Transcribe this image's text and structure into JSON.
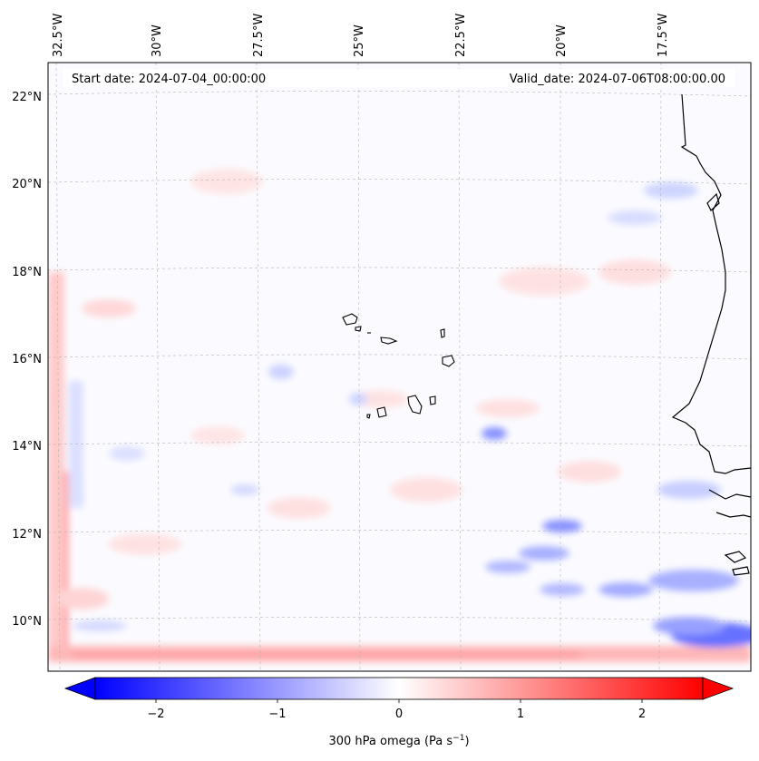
{
  "header": {
    "start_date": "Start date: 2024-07-04_00:00:00",
    "valid_date": "Valid_date: 2024-07-06T08:00:00.00"
  },
  "longitude_labels": [
    "32.5°W",
    "30°W",
    "27.5°W",
    "25°W",
    "22.5°W",
    "20°W",
    "17.5°W"
  ],
  "latitude_labels": [
    "22°N",
    "20°N",
    "18°N",
    "16°N",
    "14°N",
    "12°N",
    "10°N"
  ],
  "colorbar": {
    "ticks": [
      "−2",
      "−1",
      "0",
      "1",
      "2"
    ],
    "label_main": "300 hPa omega (Pa s",
    "label_sup": "−1",
    "label_end": ")",
    "min": -2.5,
    "max": 2.5,
    "color_min": "#0000ff",
    "color_mid": "#ffffff",
    "color_max": "#ff0000"
  }
}
